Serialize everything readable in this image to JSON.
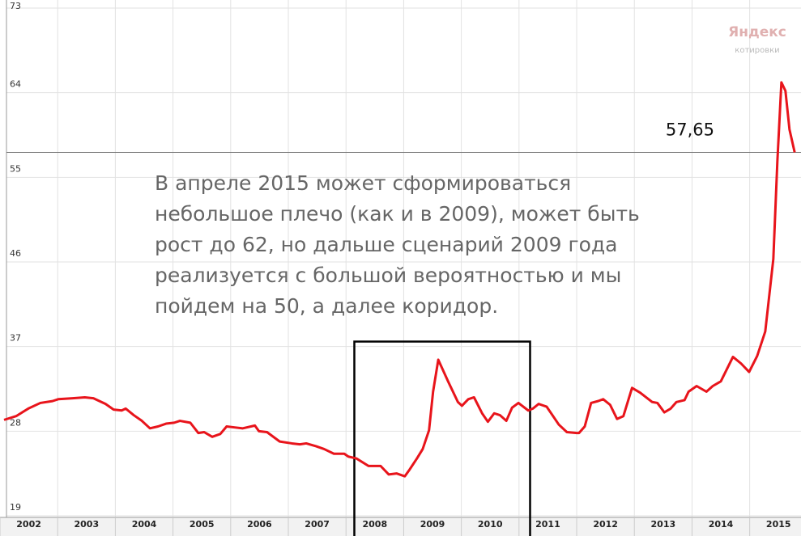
{
  "chart_data": {
    "type": "line",
    "watermark": {
      "brand": "Яндекс",
      "caption": "котировки"
    },
    "annotation": [
      "В апреле 2015 может сформироваться",
      "небольшое плечо (как и в 2009), может быть",
      "рост до 62, но дальше сценарий 2009 года",
      "реализуется с большой вероятностью и мы",
      "пойдем на 50, а далее коридор."
    ],
    "reference": {
      "value": 57.65,
      "label": "57,65"
    },
    "xlim": [
      2002,
      2015.8
    ],
    "xticks": [
      2002,
      2003,
      2004,
      2005,
      2006,
      2007,
      2008,
      2009,
      2010,
      2011,
      2012,
      2013,
      2014,
      2015
    ],
    "ylim": [
      19,
      73
    ],
    "yticks": [
      19,
      28,
      37,
      46,
      55,
      64,
      73
    ],
    "grid": true,
    "series": [
      {
        "color": "#e8141b",
        "x": [
          2002.07,
          2002.28,
          2002.49,
          2002.7,
          2002.91,
          2003.01,
          2003.26,
          2003.47,
          2003.62,
          2003.83,
          2003.97,
          2004.11,
          2004.18,
          2004.32,
          2004.46,
          2004.6,
          2004.74,
          2004.88,
          2005.02,
          2005.12,
          2005.3,
          2005.44,
          2005.54,
          2005.68,
          2005.82,
          2005.93,
          2006.07,
          2006.21,
          2006.42,
          2006.49,
          2006.63,
          2006.85,
          2007.06,
          2007.2,
          2007.31,
          2007.48,
          2007.62,
          2007.79,
          2007.97,
          2008.04,
          2008.18,
          2008.39,
          2008.6,
          2008.74,
          2008.88,
          2009.02,
          2009.09,
          2009.23,
          2009.33,
          2009.44,
          2009.51,
          2009.6,
          2009.77,
          2009.94,
          2010.01,
          2010.12,
          2010.22,
          2010.36,
          2010.46,
          2010.57,
          2010.67,
          2010.78,
          2010.88,
          2010.99,
          2011.16,
          2011.24,
          2011.34,
          2011.48,
          2011.69,
          2011.83,
          2012.0,
          2012.04,
          2012.14,
          2012.25,
          2012.37,
          2012.46,
          2012.58,
          2012.7,
          2012.81,
          2012.96,
          2013.1,
          2013.31,
          2013.4,
          2013.52,
          2013.63,
          2013.73,
          2013.87,
          2013.94,
          2014.08,
          2014.25,
          2014.36,
          2014.5,
          2014.71,
          2014.85,
          2014.99,
          2015.13,
          2015.27,
          2015.41,
          2015.48,
          2015.55,
          2015.62,
          2015.69,
          2015.78
        ],
        "values": [
          29.2,
          29.6,
          30.4,
          31.0,
          31.2,
          31.4,
          31.5,
          31.6,
          31.5,
          30.9,
          30.3,
          30.2,
          30.4,
          29.7,
          29.1,
          28.3,
          28.5,
          28.8,
          28.9,
          29.1,
          28.9,
          27.8,
          27.9,
          27.4,
          27.7,
          28.5,
          28.4,
          28.3,
          28.6,
          28.0,
          27.9,
          26.9,
          26.7,
          26.6,
          26.7,
          26.4,
          26.1,
          25.6,
          25.6,
          25.3,
          25.1,
          24.3,
          24.3,
          23.4,
          23.5,
          23.2,
          23.8,
          25.1,
          26.1,
          28.1,
          32.2,
          35.6,
          33.3,
          31.1,
          30.7,
          31.4,
          31.6,
          29.9,
          29.0,
          29.9,
          29.7,
          29.1,
          30.5,
          31.0,
          30.2,
          30.4,
          30.9,
          30.6,
          28.7,
          27.9,
          27.8,
          27.8,
          28.5,
          31.0,
          31.2,
          31.4,
          30.8,
          29.3,
          29.6,
          32.6,
          32.1,
          31.1,
          31.0,
          30.0,
          30.4,
          31.1,
          31.3,
          32.2,
          32.8,
          32.2,
          32.8,
          33.3,
          35.9,
          35.2,
          34.3,
          36.0,
          38.6,
          46.3,
          56.7,
          65.1,
          64.2,
          60.1,
          57.65
        ]
      }
    ]
  }
}
